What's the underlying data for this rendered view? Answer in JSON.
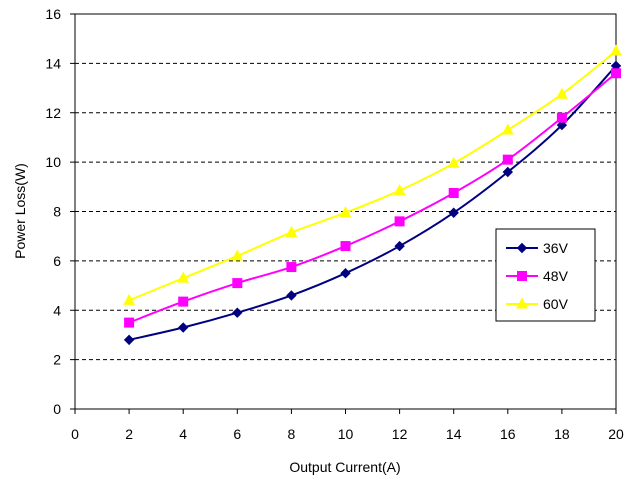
{
  "chart_data": {
    "type": "line",
    "title": "",
    "xlabel": "Output Current(A)",
    "ylabel": "Power Loss(W)",
    "xlim": [
      0,
      20
    ],
    "ylim": [
      0,
      16
    ],
    "xticks": [
      "0",
      "2",
      "4",
      "6",
      "8",
      "10",
      "12",
      "14",
      "16",
      "18",
      "20"
    ],
    "yticks": [
      "0",
      "2",
      "4",
      "6",
      "8",
      "10",
      "12",
      "14",
      "16"
    ],
    "grid": "horizontal dashed",
    "legend_position": "right",
    "x": [
      2,
      4,
      6,
      8,
      10,
      12,
      14,
      16,
      18,
      20
    ],
    "series": [
      {
        "name": "36V",
        "color": "#000080",
        "marker": "diamond",
        "values": [
          2.8,
          3.3,
          3.9,
          4.6,
          5.5,
          6.6,
          7.95,
          9.6,
          11.5,
          13.9
        ]
      },
      {
        "name": "48V",
        "color": "#ff00ff",
        "marker": "square",
        "values": [
          3.5,
          4.35,
          5.1,
          5.75,
          6.6,
          7.6,
          8.75,
          10.1,
          11.8,
          13.6
        ]
      },
      {
        "name": "60V",
        "color": "#ffff00",
        "marker": "triangle",
        "values": [
          4.4,
          5.3,
          6.2,
          7.15,
          7.95,
          8.85,
          9.95,
          11.3,
          12.75,
          14.5
        ]
      }
    ]
  }
}
